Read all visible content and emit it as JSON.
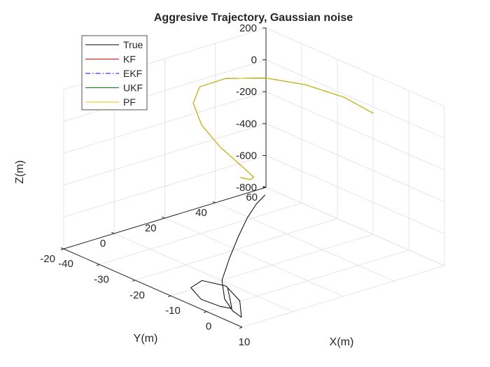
{
  "chart_data": {
    "type": "line",
    "projection": "3d",
    "title": "Aggresive Trajectory, Gaussian noise",
    "xlabel": "X(m)",
    "ylabel": "Y(m)",
    "zlabel": "Z(m)",
    "xlim": [
      -40,
      10
    ],
    "ylim": [
      -20,
      60
    ],
    "zlim": [
      -800,
      200
    ],
    "xticks": [
      "-40",
      "-30",
      "-20",
      "-10",
      "0",
      "10"
    ],
    "yticks": [
      "-20",
      "0",
      "20",
      "40",
      "60"
    ],
    "zticks": [
      "-800",
      "-600",
      "-400",
      "-200",
      "0",
      "200"
    ],
    "grid": true,
    "legend_position": "top-left",
    "series": [
      {
        "name": "True",
        "color": "#000000",
        "dash": "solid",
        "x": [
          -36,
          -30,
          -24,
          -18,
          -12,
          -7,
          -2,
          1,
          2,
          -2,
          -8,
          -14,
          -15,
          -10,
          -4,
          0,
          1,
          1
        ],
        "y": [
          54,
          42,
          30,
          18,
          6,
          -4,
          -10,
          -11,
          -9,
          -4,
          -1,
          -2,
          -5,
          -8,
          -9,
          -10,
          -12,
          -13
        ],
        "z": [
          -780,
          -720,
          -690,
          -690,
          -710,
          -750,
          -790,
          -830,
          -870,
          -830,
          -810,
          -830,
          -870,
          -880,
          -860,
          -830,
          -760,
          -680
        ]
      },
      {
        "name": "KF",
        "color": "#ff0000",
        "dash": "solid",
        "x": [
          -10,
          -16,
          -22,
          -26,
          -28,
          -26,
          -20,
          -12,
          -4,
          2,
          4,
          1,
          -4
        ],
        "y": [
          60,
          57,
          50,
          40,
          27,
          14,
          3,
          -5,
          -9,
          -9,
          -7,
          -4,
          -1
        ],
        "z": [
          -40,
          15,
          70,
          120,
          160,
          190,
          200,
          180,
          140,
          80,
          20,
          -40,
          -90
        ]
      },
      {
        "name": "EKF",
        "color": "#0000ff",
        "dash": "dashdot",
        "x": [
          -10,
          -16,
          -22,
          -26,
          -28,
          -26,
          -20,
          -12,
          -4,
          2,
          4,
          1,
          -4
        ],
        "y": [
          60,
          57,
          50,
          40,
          27,
          14,
          3,
          -5,
          -9,
          -9,
          -7,
          -4,
          -1
        ],
        "z": [
          -40,
          15,
          70,
          120,
          160,
          190,
          200,
          180,
          140,
          80,
          20,
          -40,
          -90
        ]
      },
      {
        "name": "UKF",
        "color": "#007f00",
        "dash": "solid",
        "x": [
          -10,
          -16,
          -22,
          -26,
          -28,
          -26,
          -20,
          -12,
          -4,
          2,
          4,
          1,
          -4
        ],
        "y": [
          60,
          57,
          50,
          40,
          27,
          14,
          3,
          -5,
          -9,
          -9,
          -7,
          -4,
          -1
        ],
        "z": [
          -40,
          15,
          70,
          120,
          160,
          190,
          200,
          180,
          140,
          80,
          20,
          -40,
          -90
        ]
      },
      {
        "name": "PF",
        "color": "#e6c600",
        "dash": "solid",
        "x": [
          -10,
          -16,
          -22,
          -26,
          -28,
          -26,
          -20,
          -12,
          -4,
          2,
          4,
          1,
          -4
        ],
        "y": [
          60,
          57,
          50,
          40,
          27,
          14,
          3,
          -5,
          -9,
          -9,
          -7,
          -4,
          -1
        ],
        "z": [
          -40,
          15,
          70,
          120,
          160,
          190,
          200,
          180,
          140,
          80,
          20,
          -40,
          -90
        ]
      }
    ]
  }
}
